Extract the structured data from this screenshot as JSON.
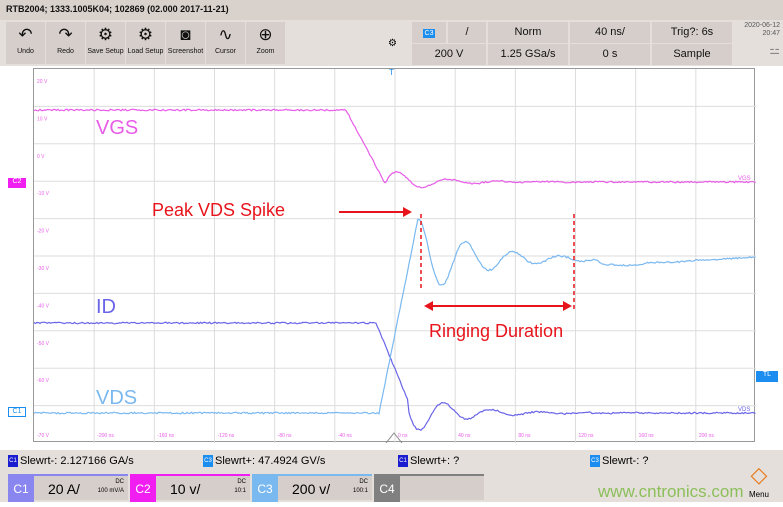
{
  "title": "RTB2004; 1333.1005K04; 102869 (02.000 2017-11-21)",
  "toolbar": [
    {
      "label": "Undo",
      "icon": "undo-icon",
      "glyph": "↶"
    },
    {
      "label": "Redo",
      "icon": "redo-icon",
      "glyph": "↷"
    },
    {
      "label": "Save Setup",
      "icon": "save-setup-icon",
      "glyph": "⚙"
    },
    {
      "label": "Load Setup",
      "icon": "load-setup-icon",
      "glyph": "⚙"
    },
    {
      "label": "Screenshot",
      "icon": "camera-icon",
      "glyph": "◙"
    },
    {
      "label": "Cursor",
      "icon": "cursor-icon",
      "glyph": "∿"
    },
    {
      "label": "Zoom",
      "icon": "zoom-icon",
      "glyph": "⊕"
    }
  ],
  "acq": {
    "channel": "C3",
    "slope": "/",
    "mode": "Norm",
    "timebase": "40 ns/",
    "trig": "Trig?: 6s",
    "scale": "200 V",
    "rate": "1.25 GSa/s",
    "offset": "0 s",
    "acq_mode": "Sample",
    "date": "2020-06-12",
    "time": "20:47"
  },
  "y_ticks": [
    "20 V",
    "10 V",
    "0 V",
    "-10 V",
    "-20 V",
    "-30 V",
    "-40 V",
    "-50 V",
    "-60 V",
    "-70 V"
  ],
  "x_ticks": [
    "-200 ns",
    "-160 ns",
    "-120 ns",
    "-80 ns",
    "-40 ns",
    "0 ns",
    "40 ns",
    "80 ns",
    "120 ns",
    "160 ns",
    "200 ns"
  ],
  "traces": {
    "VGS": "VGS",
    "ID": "ID",
    "VDS": "VDS",
    "colors": {
      "VGS": "#e85ce8",
      "ID": "#6a64e8",
      "VDS": "#7ab8f0"
    },
    "end_label_vgs": "VGS",
    "end_label_vds": "VDS"
  },
  "annotations": {
    "peak": "Peak VDS Spike",
    "ringing": "Ringing Duration",
    "color": "#e8141c"
  },
  "markers": {
    "c2": "C2",
    "c1": "C1",
    "tl": "TL",
    "trigger": "T"
  },
  "measurements": [
    {
      "ch": "C1",
      "text": "Slewrt-: 2.127166 GA/s"
    },
    {
      "ch": "C3",
      "text": "Slewrt+: 47.4924 GV/s"
    },
    {
      "ch": "C1",
      "text": "Slewrt+: ?"
    },
    {
      "ch": "C3",
      "text": "Slewrt-: ?"
    }
  ],
  "channels": [
    {
      "name": "C1",
      "scale": "20 A/",
      "coupling": "DC",
      "probe": "100 mV/A",
      "color": "#8a86f0"
    },
    {
      "name": "C2",
      "scale": "10 v/",
      "coupling": "DC",
      "probe": "10:1",
      "color": "#f01ef0"
    },
    {
      "name": "C3",
      "scale": "200 v/",
      "coupling": "DC",
      "probe": "100:1",
      "color": "#7ab8f0"
    },
    {
      "name": "C4",
      "scale": "",
      "coupling": "",
      "probe": "",
      "color": "#808080"
    }
  ],
  "menu": "Menu",
  "watermark": "www.cntronics.com"
}
